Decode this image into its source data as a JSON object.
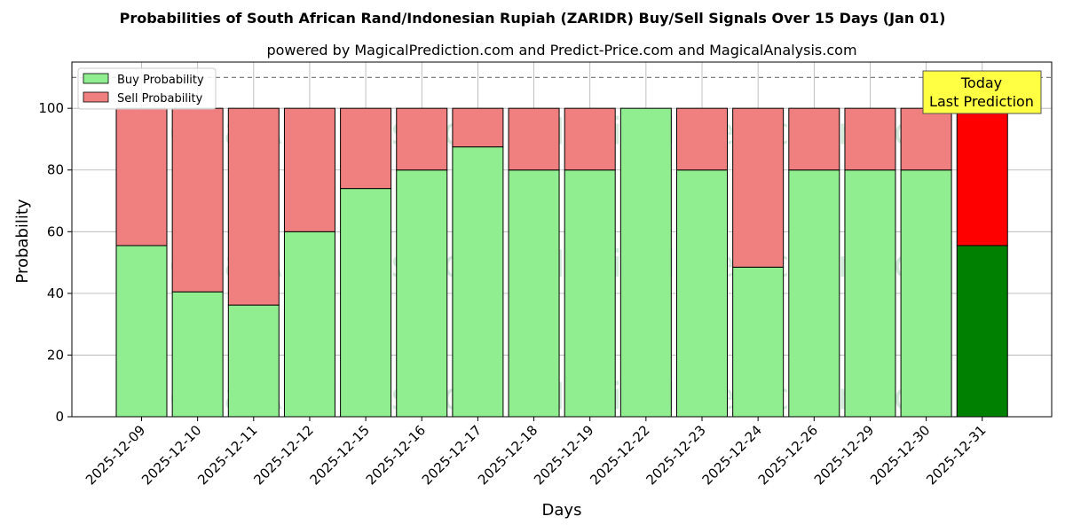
{
  "chart_data": {
    "type": "bar",
    "stacked": true,
    "title": "Probabilities of South African Rand/Indonesian Rupiah (ZARIDR) Buy/Sell Signals Over 15 Days (Jan 01)",
    "subtitle": "powered by MagicalPrediction.com and Predict-Price.com and MagicalAnalysis.com",
    "xlabel": "Days",
    "ylabel": "Probability",
    "ylim": [
      0,
      115
    ],
    "yticks": [
      0,
      20,
      40,
      60,
      80,
      100
    ],
    "grid": true,
    "legend_position": "top-left",
    "reference_line": {
      "y": 110,
      "style": "dashed"
    },
    "categories": [
      "2025-12-09",
      "2025-12-10",
      "2025-12-11",
      "2025-12-12",
      "2025-12-15",
      "2025-12-16",
      "2025-12-17",
      "2025-12-18",
      "2025-12-19",
      "2025-12-22",
      "2025-12-23",
      "2025-12-24",
      "2025-12-26",
      "2025-12-29",
      "2025-12-30",
      "2025-12-31"
    ],
    "series": [
      {
        "name": "Buy Probability",
        "color": "#90ee90",
        "values": [
          55.5,
          40.5,
          36.2,
          60.0,
          74.0,
          80.0,
          87.5,
          80.0,
          80.0,
          100.0,
          80.0,
          48.5,
          80.0,
          80.0,
          80.0,
          55.5
        ]
      },
      {
        "name": "Sell Probability",
        "color": "#f08080",
        "values": [
          44.5,
          59.5,
          63.8,
          40.0,
          26.0,
          20.0,
          12.5,
          20.0,
          20.0,
          0.0,
          20.0,
          51.5,
          20.0,
          20.0,
          20.0,
          44.5
        ]
      }
    ],
    "highlight": {
      "index": 15,
      "buy_color": "#008000",
      "sell_color": "#ff0000"
    },
    "annotation": {
      "lines": [
        "Today",
        "Last Prediction"
      ],
      "background": "#ffff44"
    },
    "watermarks": [
      "MagicalAnalysis.com",
      "MagicalPrediction.com"
    ]
  }
}
